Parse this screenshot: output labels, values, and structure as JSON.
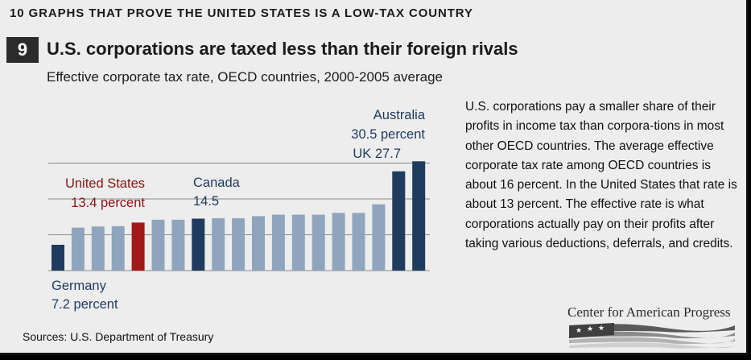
{
  "header": {
    "series_title": "10 GRAPHS THAT PROVE THE UNITED STATES IS A LOW-TAX COUNTRY",
    "number": "9",
    "title": "U.S. corporations are taxed less than their foreign rivals",
    "subtitle": "Effective corporate tax rate, OECD countries, 2000-2005 average"
  },
  "body_text": "U.S. corporations pay a smaller share of their profits in income tax than corpora-tions in most other OECD countries. The average effective corporate tax rate among OECD countries is about 16 percent. In the United States that rate is about 13 percent. The effective rate is what corporations actually pay on their profits after taking various deductions, deferrals, and credits.",
  "source": "Sources: U.S. Department of Treasury",
  "logo": {
    "text": "Center for American Progress"
  },
  "colors": {
    "default_bar": "#8fa5bd",
    "highlight_bar": "#1f3b5e",
    "us_bar": "#a01818",
    "us_label": "#8b1414",
    "highlight_label": "#1f3b5e",
    "grid": "#8a8a8a"
  },
  "chart_data": {
    "type": "bar",
    "grid": true,
    "ylim": [
      0,
      35
    ],
    "values": [
      7.2,
      12.0,
      12.3,
      12.4,
      13.4,
      14.2,
      14.2,
      14.5,
      14.6,
      14.6,
      15.2,
      15.6,
      15.6,
      15.6,
      16.1,
      16.1,
      18.5,
      27.7,
      30.5
    ],
    "highlight": [
      {
        "index": 0,
        "style": "highlight",
        "lines": [
          "Germany",
          "7.2 percent"
        ]
      },
      {
        "index": 4,
        "style": "us",
        "lines": [
          "United States",
          "13.4 percent"
        ]
      },
      {
        "index": 7,
        "style": "highlight",
        "lines": [
          "Canada",
          "14.5"
        ]
      },
      {
        "index": 17,
        "style": "highlight",
        "lines": [
          "UK 27.7"
        ]
      },
      {
        "index": 18,
        "style": "highlight",
        "lines": [
          "Australia",
          "30.5 percent"
        ]
      }
    ]
  }
}
